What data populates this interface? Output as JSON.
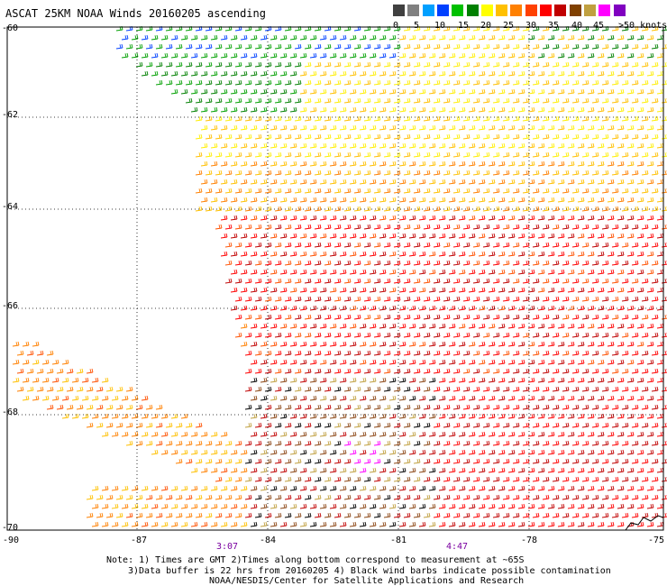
{
  "title": "ASCAT 25KM NOAA Winds 20160205 ascending",
  "legend": {
    "labels": [
      "0",
      "5",
      "10",
      "15",
      "20",
      "25",
      "30",
      "35",
      "40",
      "45",
      ">50 knots"
    ],
    "colors": [
      "#404040",
      "#808080",
      "#00a0ff",
      "#0040ff",
      "#00c000",
      "#008000",
      "#ffff00",
      "#ffc000",
      "#ff8000",
      "#ff4000",
      "#ff0000",
      "#c00000",
      "#804000",
      "#c0a040",
      "#ff00ff",
      "#8000c0"
    ]
  },
  "axes": {
    "lat_labels": [
      "-60",
      "-62",
      "-64",
      "-66",
      "-68",
      "-70"
    ],
    "lon_labels": [
      "-90",
      "-87",
      "-84",
      "-81",
      "-78",
      "-75"
    ]
  },
  "times": [
    "3:07",
    "4:47"
  ],
  "notes": [
    "Note: 1) Times are GMT 2)Times along bottom correspond to measurement at ~65S",
    "3)Data buffer is 22 hrs from 20160205 4) Black wind barbs indicate possible contamination",
    "NOAA/NESDIS/Center for Satellite Applications and Research"
  ]
}
